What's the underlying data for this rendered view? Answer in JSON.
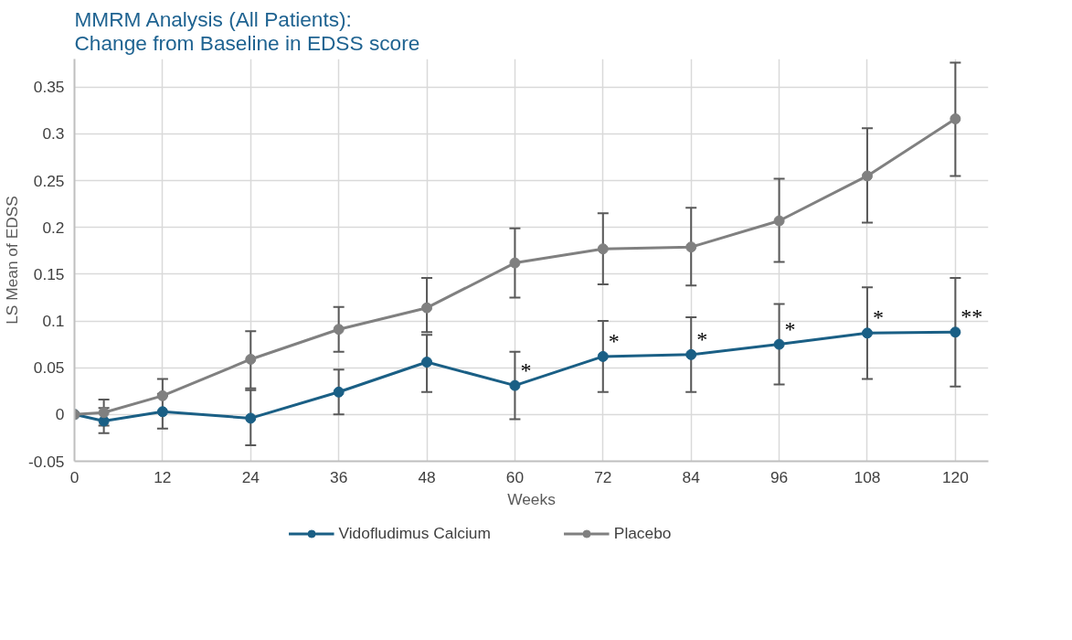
{
  "chart_data": {
    "type": "line",
    "title": "MMRM Analysis (All Patients):\nChange from Baseline in EDSS score",
    "xlabel": "Weeks",
    "ylabel": "LS Mean of EDSS",
    "x": [
      0,
      4,
      12,
      24,
      36,
      48,
      60,
      72,
      84,
      96,
      108,
      120
    ],
    "series": [
      {
        "name": "Vidofludimus Calcium",
        "color": "#1a5f85",
        "values": [
          0,
          -0.007,
          0.003,
          -0.004,
          0.024,
          0.056,
          0.031,
          0.062,
          0.064,
          0.075,
          0.087,
          0.088
        ],
        "errors": [
          null,
          [
            -0.02,
            0.007
          ],
          [
            -0.015,
            0.022
          ],
          [
            -0.033,
            0.026
          ],
          [
            0,
            0.048
          ],
          [
            0.024,
            0.085
          ],
          [
            -0.005,
            0.067
          ],
          [
            0.024,
            0.1
          ],
          [
            0.024,
            0.104
          ],
          [
            0.032,
            0.118
          ],
          [
            0.038,
            0.136
          ],
          [
            0.03,
            0.146
          ]
        ]
      },
      {
        "name": "Placebo",
        "color": "#808080",
        "values": [
          0,
          0.002,
          0.02,
          0.059,
          0.091,
          0.114,
          0.162,
          0.177,
          0.179,
          0.207,
          0.255,
          0.316
        ],
        "errors": [
          null,
          [
            -0.012,
            0.016
          ],
          [
            0.02,
            0.038
          ],
          [
            0.028,
            0.089
          ],
          [
            0.067,
            0.115
          ],
          [
            0.088,
            0.146
          ],
          [
            0.125,
            0.199
          ],
          [
            0.139,
            0.215
          ],
          [
            0.138,
            0.221
          ],
          [
            0.163,
            0.252
          ],
          [
            0.205,
            0.306
          ],
          [
            0.255,
            0.376
          ]
        ]
      }
    ],
    "annotations": [
      {
        "text": "*",
        "x": 60,
        "y": 0.031
      },
      {
        "text": "*",
        "x": 72,
        "y": 0.062
      },
      {
        "text": "*",
        "x": 84,
        "y": 0.064
      },
      {
        "text": "*",
        "x": 96,
        "y": 0.075
      },
      {
        "text": "*",
        "x": 108,
        "y": 0.087
      },
      {
        "text": "**",
        "x": 120,
        "y": 0.088
      }
    ],
    "xlim": [
      0,
      124.5
    ],
    "ylim": [
      -0.05,
      0.38
    ],
    "xticks": [
      0,
      12,
      24,
      36,
      48,
      60,
      72,
      84,
      96,
      108,
      120
    ],
    "yticks": [
      -0.05,
      0,
      0.05,
      0.1,
      0.15,
      0.2,
      0.25,
      0.3,
      0.35
    ],
    "grid": true,
    "legend": "bottom",
    "marker": "circle",
    "line_style": "solid"
  }
}
